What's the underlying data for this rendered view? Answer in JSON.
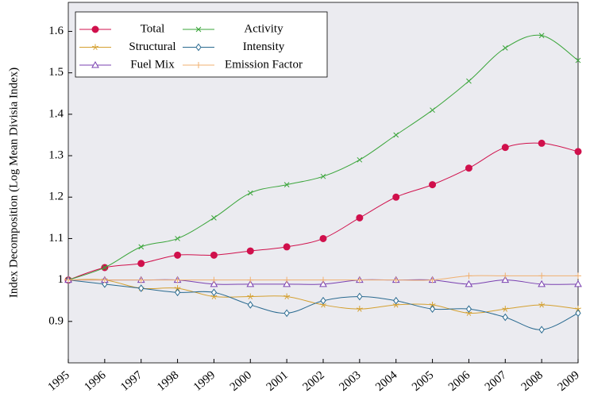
{
  "chart_data": {
    "type": "line",
    "y_label": "Index Decomposition (Log Mean Divisia Index)",
    "x": [
      1995,
      1996,
      1997,
      1998,
      1999,
      2000,
      2001,
      2002,
      2003,
      2004,
      2005,
      2006,
      2007,
      2008,
      2009
    ],
    "xlim": [
      1995,
      2009
    ],
    "xticks": [
      1995,
      1996,
      1997,
      1998,
      1999,
      2000,
      2001,
      2002,
      2003,
      2004,
      2005,
      2006,
      2007,
      2008,
      2009
    ],
    "ylim": [
      0.8,
      1.67
    ],
    "yticks": [
      0.9,
      1,
      1.1,
      1.2,
      1.3,
      1.4,
      1.5,
      1.6
    ],
    "legend": "top-left",
    "series": [
      {
        "name": "Total",
        "color": "#d0104c",
        "marker": "circle",
        "values": [
          1.0,
          1.03,
          1.04,
          1.06,
          1.06,
          1.07,
          1.08,
          1.1,
          1.15,
          1.2,
          1.23,
          1.27,
          1.32,
          1.33,
          1.31
        ]
      },
      {
        "name": "Activity",
        "color": "#3aa53a",
        "marker": "x",
        "values": [
          1.0,
          1.03,
          1.08,
          1.1,
          1.15,
          1.21,
          1.23,
          1.25,
          1.29,
          1.35,
          1.41,
          1.48,
          1.56,
          1.59,
          1.53
        ]
      },
      {
        "name": "Structural",
        "color": "#d4a030",
        "marker": "star",
        "values": [
          1.0,
          1.0,
          0.98,
          0.98,
          0.96,
          0.96,
          0.96,
          0.94,
          0.93,
          0.94,
          0.94,
          0.92,
          0.93,
          0.94,
          0.93
        ]
      },
      {
        "name": "Intensity",
        "color": "#2a6a90",
        "marker": "diamond",
        "values": [
          1.0,
          0.99,
          0.98,
          0.97,
          0.97,
          0.94,
          0.92,
          0.95,
          0.96,
          0.95,
          0.93,
          0.93,
          0.91,
          0.88,
          0.92
        ]
      },
      {
        "name": "Fuel Mix",
        "color": "#7a40b0",
        "marker": "triangle",
        "values": [
          1.0,
          1.0,
          1.0,
          1.0,
          0.99,
          0.99,
          0.99,
          0.99,
          1.0,
          1.0,
          1.0,
          0.99,
          1.0,
          0.99,
          0.99
        ]
      },
      {
        "name": "Emission Factor",
        "color": "#f0b070",
        "marker": "plus",
        "values": [
          1.0,
          1.0,
          1.0,
          1.0,
          1.0,
          1.0,
          1.0,
          1.0,
          1.0,
          1.0,
          1.0,
          1.01,
          1.01,
          1.01,
          1.01
        ]
      }
    ]
  }
}
